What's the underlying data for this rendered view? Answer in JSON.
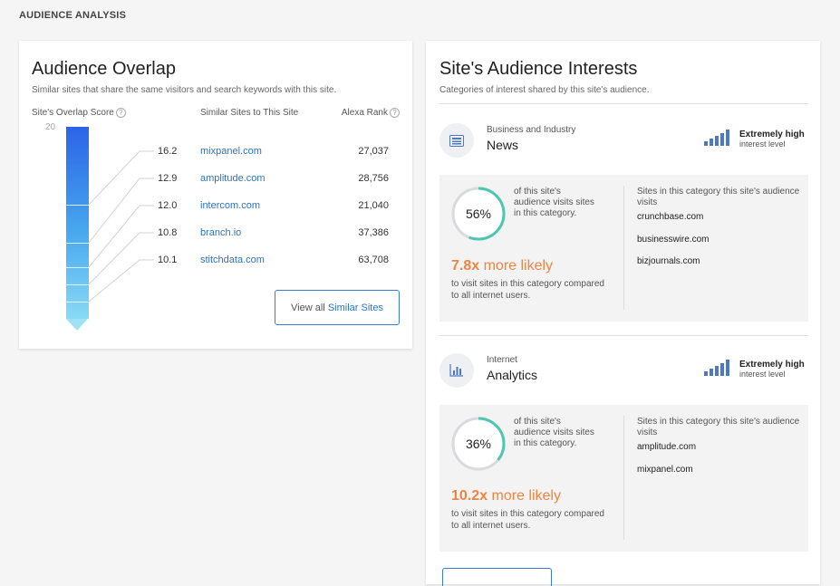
{
  "page": {
    "section_title": "AUDIENCE ANALYSIS"
  },
  "overlap": {
    "title": "Audience Overlap",
    "subtitle": "Similar sites that share the same visitors and search keywords with this site.",
    "col_score": "Site's Overlap Score",
    "col_sites": "Similar Sites to This Site",
    "col_rank": "Alexa Rank",
    "help_glyph": "?",
    "score_max": "20",
    "rows": [
      {
        "score": "16.2",
        "site": "mixpanel.com",
        "rank": "27,037"
      },
      {
        "score": "12.9",
        "site": "amplitude.com",
        "rank": "28,756"
      },
      {
        "score": "12.0",
        "site": "intercom.com",
        "rank": "21,040"
      },
      {
        "score": "10.8",
        "site": "branch.io",
        "rank": "37,386"
      },
      {
        "score": "10.1",
        "site": "stitchdata.com",
        "rank": "63,708"
      }
    ],
    "view_all_prefix": "View all",
    "view_all_accent": "Similar Sites"
  },
  "interests": {
    "title": "Site's Audience Interests",
    "subtitle": "Categories of interest shared by this site's audience.",
    "categories": [
      {
        "parent": "Business and Industry",
        "name": "News",
        "icon": "news-icon",
        "level_title": "Extremely high",
        "level_sub": "interest level",
        "percent_value": 56,
        "percent": "56%",
        "share_text": "of this site's audience visits sites in this category.",
        "likely_multiplier": "7.8x",
        "likely_word": "more likely",
        "likely_note": "to visit sites in this category compared to all internet users.",
        "sites_head": "Sites in this category this site's audience visits",
        "sites": [
          "crunchbase.com",
          "businesswire.com",
          "bizjournals.com"
        ]
      },
      {
        "parent": "Internet",
        "name": "Analytics",
        "icon": "analytics-chart-icon",
        "level_title": "Extremely high",
        "level_sub": "interest level",
        "percent_value": 36,
        "percent": "36%",
        "share_text": "of this site's audience visits sites in this category.",
        "likely_multiplier": "10.2x",
        "likely_word": "more likely",
        "likely_note": "to visit sites in this category compared to all internet users.",
        "sites_head": "Sites in this category this site's audience visits",
        "sites": [
          "amplitude.com",
          "mixpanel.com"
        ]
      }
    ]
  },
  "colors": {
    "accent": "#2a74c4",
    "ring": "#4fc7b0",
    "likely": "#f0843f",
    "bar_top": "#2b64e8",
    "bar_bottom": "#88daf5"
  }
}
